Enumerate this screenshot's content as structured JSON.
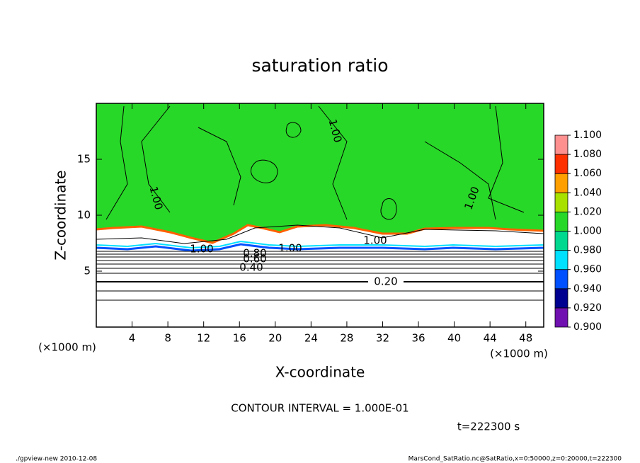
{
  "chart_data": {
    "type": "contour",
    "title": "saturation ratio",
    "xlabel": "X-coordinate",
    "ylabel": "Z-coordinate",
    "x_unit": "(×1000 m)",
    "y_unit": "(×1000 m)",
    "xlim": [
      0,
      50
    ],
    "xticks": [
      4,
      8,
      12,
      16,
      20,
      24,
      28,
      32,
      36,
      40,
      44,
      48
    ],
    "ylim": [
      0,
      20
    ],
    "yticks": [
      5,
      10,
      15
    ],
    "colorbar": {
      "levels": [
        {
          "value": 0.9,
          "label": "0.900"
        },
        {
          "value": 0.92,
          "label": "0.920"
        },
        {
          "value": 0.94,
          "label": "0.940"
        },
        {
          "value": 0.96,
          "label": "0.960"
        },
        {
          "value": 0.98,
          "label": "0.980"
        },
        {
          "value": 1.0,
          "label": "1.000"
        },
        {
          "value": 1.02,
          "label": "1.020"
        },
        {
          "value": 1.04,
          "label": "1.040"
        },
        {
          "value": 1.06,
          "label": "1.060"
        },
        {
          "value": 1.08,
          "label": "1.080"
        },
        {
          "value": 1.1,
          "label": "1.100"
        }
      ],
      "colors": [
        "#7010b0",
        "#000090",
        "#0050ff",
        "#00e0ff",
        "#00d890",
        "#28d828",
        "#a8e000",
        "#ffa000",
        "#ff3000",
        "#ff9090"
      ]
    },
    "contour_labels": [
      {
        "value": 1,
        "label": "1.00"
      },
      {
        "value": 1,
        "label": "1.00"
      },
      {
        "value": 1,
        "label": "1.00"
      },
      {
        "value": 1,
        "label": "1.00"
      },
      {
        "value": 1,
        "label": "1.00"
      },
      {
        "value": 1,
        "label": "1.00"
      },
      {
        "value": 0.8,
        "label": "0.80"
      },
      {
        "value": 0.6,
        "label": "0.60"
      },
      {
        "value": 0.4,
        "label": "0.40"
      },
      {
        "value": 0.2,
        "label": "0.20"
      }
    ],
    "annotation": "CONTOUR INTERVAL = 1.000E-01",
    "time": "t=222300 s",
    "footer_left": "./gpview-new  2010-12-08",
    "footer_right": "MarsCond_SatRatio.nc@SatRatio,x=0:50000,z=0:20000,t=222300"
  }
}
